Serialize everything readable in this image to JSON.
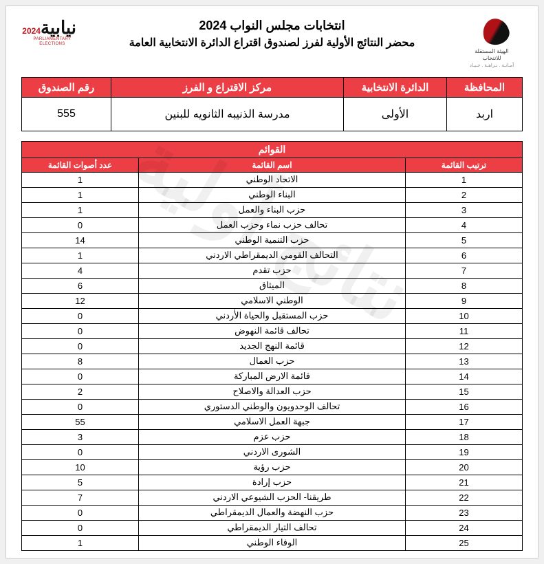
{
  "watermark": "نتائج أولية",
  "header": {
    "title1": "انتخابات مجلس النواب 2024",
    "title2": "محضر النتائج الأولية لفرز لصندوق اقتراع الدائرة الانتخابية العامة",
    "iec_line1": "الهيئة المستقلة",
    "iec_line2": "للانتخاب",
    "iec_tag": "أمـانـة . نـزاهـة . حـيـاد",
    "nia_word": "نيابية",
    "nia_year": "2024",
    "nia_sub": "PARLIAMENTARY ELECTIONS"
  },
  "info": {
    "headers": {
      "gov": "المحافظة",
      "dist": "الدائرة الانتخابية",
      "center": "مركز الاقتراع و الفرز",
      "box": "رقم الصندوق"
    },
    "values": {
      "gov": "اربد",
      "dist": "الأولى",
      "center": "مدرسة الذنيبه الثانويه للبنين",
      "box": "555"
    }
  },
  "lists": {
    "section_title": "القوائم",
    "headers": {
      "rank": "ترتيب القائمة",
      "name": "اسم القائمة",
      "votes": "عدد أصوات القائمة"
    },
    "rows": [
      {
        "rank": "1",
        "name": "الاتحاد الوطني",
        "votes": "1"
      },
      {
        "rank": "2",
        "name": "البناء الوطني",
        "votes": "1"
      },
      {
        "rank": "3",
        "name": "حزب البناء والعمل",
        "votes": "1"
      },
      {
        "rank": "4",
        "name": "تحالف حزب نماء وحزب العمل",
        "votes": "0"
      },
      {
        "rank": "5",
        "name": "حزب التنمية الوطني",
        "votes": "14"
      },
      {
        "rank": "6",
        "name": "التحالف القومي الديمقراطي الاردني",
        "votes": "1"
      },
      {
        "rank": "7",
        "name": "حزب تقدم",
        "votes": "4"
      },
      {
        "rank": "8",
        "name": "الميثاق",
        "votes": "6"
      },
      {
        "rank": "9",
        "name": "الوطني الاسلامي",
        "votes": "12"
      },
      {
        "rank": "10",
        "name": "حزب المستقبل والحياة الأردني",
        "votes": "0"
      },
      {
        "rank": "11",
        "name": "تحالف قائمة النهوض",
        "votes": "0"
      },
      {
        "rank": "12",
        "name": "قائمة النهج الجديد",
        "votes": "0"
      },
      {
        "rank": "13",
        "name": "حزب العمال",
        "votes": "8"
      },
      {
        "rank": "14",
        "name": "قائمة الارض المباركة",
        "votes": "0"
      },
      {
        "rank": "15",
        "name": "حزب العدالة والاصلاح",
        "votes": "2"
      },
      {
        "rank": "16",
        "name": "تحالف الوحدويون والوطني الدستوري",
        "votes": "0"
      },
      {
        "rank": "17",
        "name": "جبهة العمل الاسلامي",
        "votes": "55"
      },
      {
        "rank": "18",
        "name": "حزب عزم",
        "votes": "3"
      },
      {
        "rank": "19",
        "name": "الشورى الاردني",
        "votes": "0"
      },
      {
        "rank": "20",
        "name": "حزب رؤية",
        "votes": "10"
      },
      {
        "rank": "21",
        "name": "حزب إرادة",
        "votes": "5"
      },
      {
        "rank": "22",
        "name": "طريقنا- الحزب الشيوعي الاردني",
        "votes": "7"
      },
      {
        "rank": "23",
        "name": "حزب النهضة والعمال الديمقراطي",
        "votes": "0"
      },
      {
        "rank": "24",
        "name": "تحالف التيار الديمقراطي",
        "votes": "0"
      },
      {
        "rank": "25",
        "name": "الوفاء الوطني",
        "votes": "1"
      }
    ]
  }
}
